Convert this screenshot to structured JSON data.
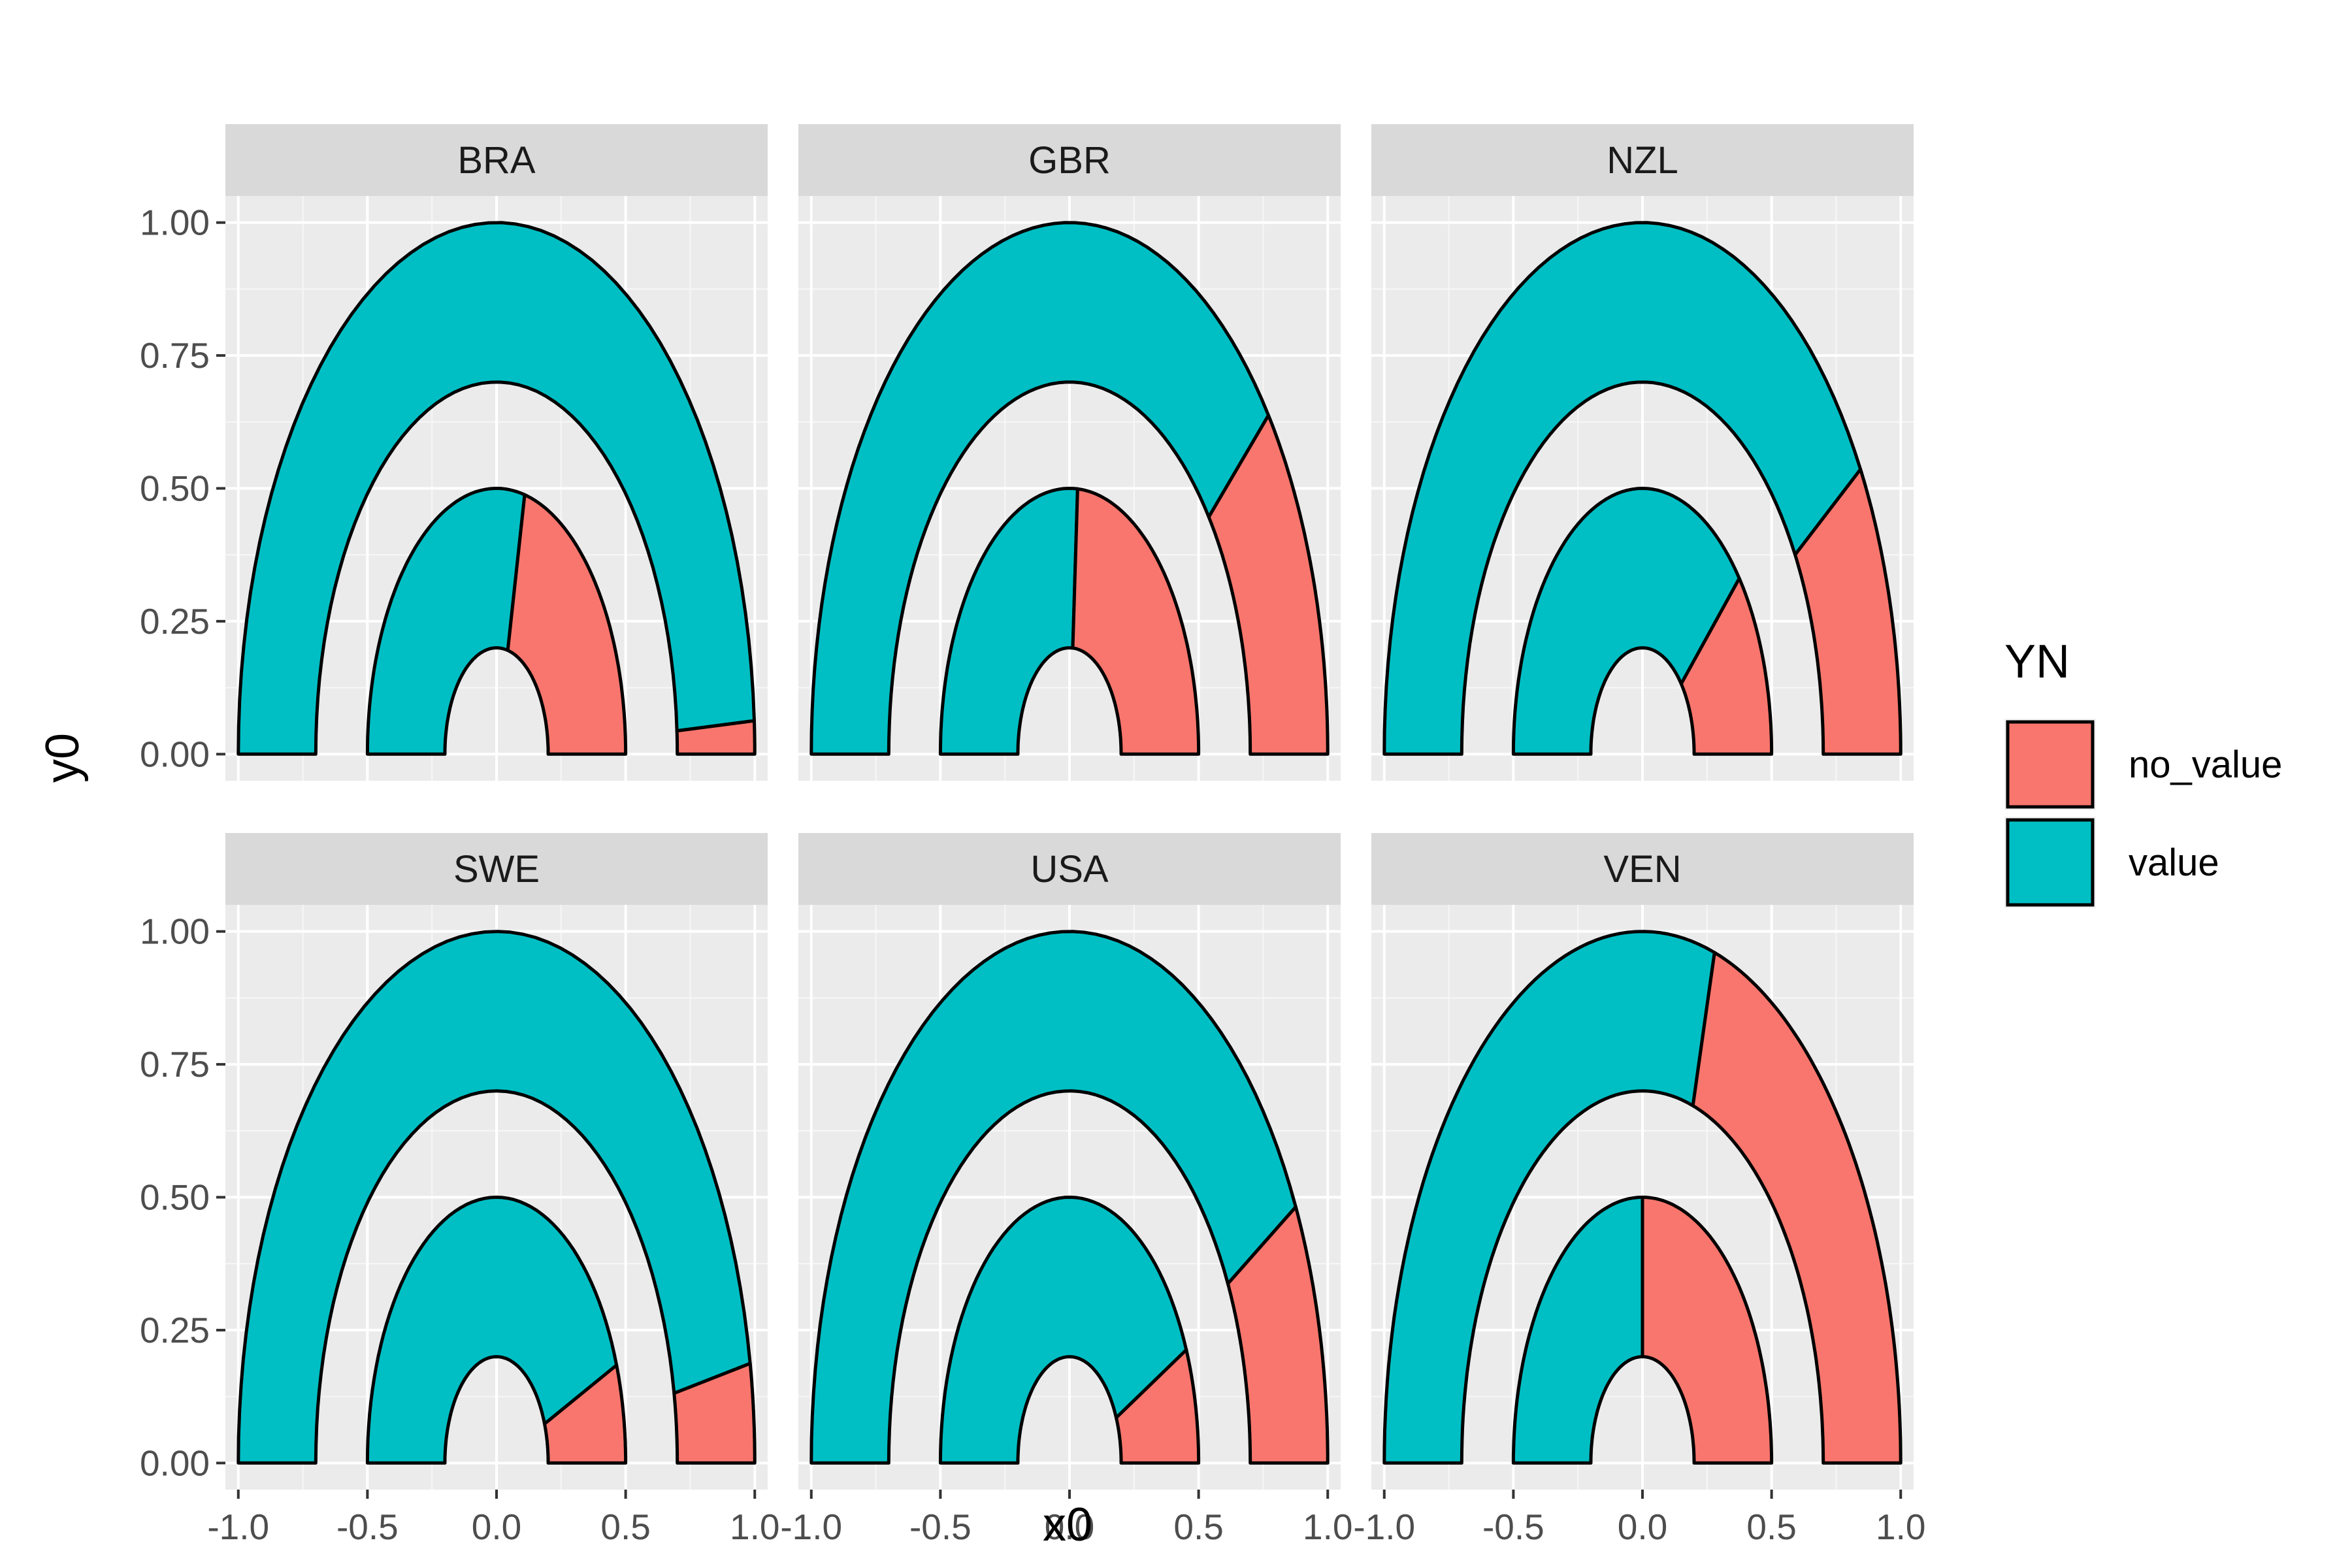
{
  "chart_data": {
    "type": "faceted-donut-arcs",
    "xlabel": "x0",
    "ylabel": "y0",
    "xlim": [
      -1.05,
      1.05
    ],
    "ylim": [
      -0.05,
      1.05
    ],
    "x_ticks": [
      -1.0,
      -0.5,
      0.0,
      0.5,
      1.0
    ],
    "x_tick_labels": [
      "-1.0",
      "-0.5",
      "0.0",
      "0.5",
      "1.0"
    ],
    "y_ticks": [
      0.0,
      0.25,
      0.5,
      0.75,
      1.0
    ],
    "y_tick_labels": [
      "0.00",
      "0.25",
      "0.50",
      "0.75",
      "1.00"
    ],
    "grid": true,
    "legend": {
      "title": "YN",
      "position": "right",
      "entries": [
        {
          "label": "no_value",
          "color": "#F8766D"
        },
        {
          "label": "value",
          "color": "#00BFC4"
        }
      ]
    },
    "rings": [
      {
        "ring": "outer",
        "r_inner": 0.7,
        "r_outer": 1.0
      },
      {
        "ring": "inner",
        "r_inner": 0.2,
        "r_outer": 0.5
      }
    ],
    "facets": [
      {
        "name": "BRA",
        "outer_no_value_share": 0.02,
        "inner_no_value_share": 0.43
      },
      {
        "name": "GBR",
        "outer_no_value_share": 0.22,
        "inner_no_value_share": 0.48
      },
      {
        "name": "NZL",
        "outer_no_value_share": 0.18,
        "inner_no_value_share": 0.23
      },
      {
        "name": "SWE",
        "outer_no_value_share": 0.06,
        "inner_no_value_share": 0.12
      },
      {
        "name": "USA",
        "outer_no_value_share": 0.16,
        "inner_no_value_share": 0.14
      },
      {
        "name": "VEN",
        "outer_no_value_share": 0.41,
        "inner_no_value_share": 0.5
      }
    ]
  }
}
